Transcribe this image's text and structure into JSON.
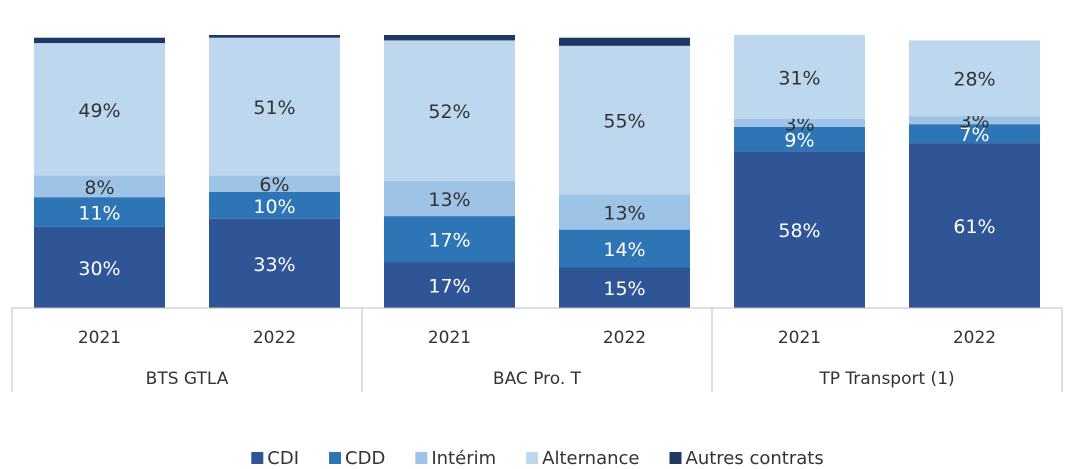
{
  "chart_data": {
    "type": "stacked_bar",
    "categories": [
      "2021",
      "2022",
      "2021",
      "2022",
      "2021",
      "2022"
    ],
    "groups": [
      "BTS GTLA",
      "BAC Pro. T",
      "TP Transport (1)"
    ],
    "series": [
      {
        "name": "CDI",
        "color": "#2f5597",
        "values": [
          30,
          33,
          17,
          15,
          58,
          61
        ],
        "value_labels": [
          "30%",
          "33%",
          "17%",
          "15%",
          "58%",
          "61%"
        ]
      },
      {
        "name": "CDD",
        "color": "#2e75b6",
        "values": [
          11,
          10,
          17,
          14,
          9,
          7
        ],
        "value_labels": [
          "11%",
          "10%",
          "17%",
          "14%",
          "9%",
          "7%"
        ]
      },
      {
        "name": "Intérim",
        "color": "#9dc3e6",
        "values": [
          8,
          6,
          13,
          13,
          3,
          3
        ],
        "value_labels": [
          "8%",
          "6%",
          "13%",
          "13%",
          "3%",
          "3%"
        ]
      },
      {
        "name": "Alternance",
        "color": "#bdd7ee",
        "values": [
          49,
          51,
          52,
          55,
          31,
          28
        ],
        "value_labels": [
          "49%",
          "51%",
          "52%",
          "55%",
          "31%",
          "28%"
        ]
      },
      {
        "name": "Autres contrats",
        "color": "#1f3864",
        "values": [
          2,
          1,
          2,
          3,
          null,
          null
        ],
        "value_labels": [
          "2%",
          "1%",
          "2%",
          "3%",
          null,
          null
        ]
      }
    ]
  }
}
